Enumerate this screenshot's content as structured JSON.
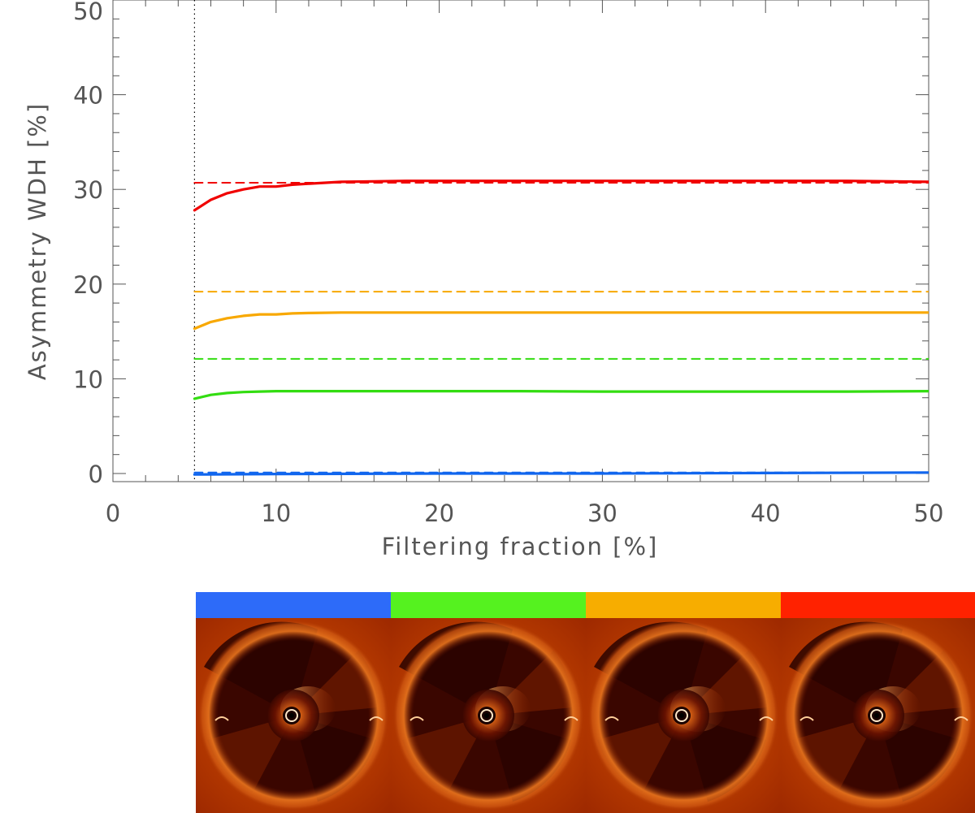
{
  "chart_data": {
    "type": "line",
    "xlabel": "Filtering fraction [%]",
    "ylabel": "Asymmetry WDH [%]",
    "xlim": [
      0,
      50
    ],
    "ylim": [
      0,
      50
    ],
    "xticks": [
      0,
      10,
      20,
      30,
      40,
      50
    ],
    "yticks": [
      0,
      10,
      20,
      30,
      40,
      50
    ],
    "xtick_labels": [
      "0",
      "10",
      "20",
      "30",
      "40",
      "50"
    ],
    "ytick_labels": [
      "0",
      "10",
      "20",
      "30",
      "40",
      "50"
    ],
    "grid": false,
    "vertical_reference_line": {
      "x": 5,
      "style": "dotted",
      "color": "#000000"
    },
    "series": [
      {
        "color": "#f00000",
        "style": "solid",
        "x": [
          5,
          6,
          7,
          8,
          9,
          10,
          11,
          12,
          14,
          16,
          18,
          20,
          25,
          30,
          35,
          40,
          45,
          50
        ],
        "y": [
          27.8,
          28.9,
          29.6,
          30.0,
          30.3,
          30.3,
          30.5,
          30.6,
          30.8,
          30.85,
          30.9,
          30.9,
          30.9,
          30.9,
          30.9,
          30.9,
          30.9,
          30.8
        ]
      },
      {
        "color": "#f00000",
        "style": "dashed",
        "x": [
          5,
          50
        ],
        "y": [
          30.7,
          30.7
        ]
      },
      {
        "color": "#f8a800",
        "style": "solid",
        "x": [
          5,
          6,
          7,
          8,
          9,
          10,
          11,
          12,
          14,
          16,
          18,
          20,
          25,
          30,
          35,
          40,
          45,
          50
        ],
        "y": [
          15.3,
          16.0,
          16.4,
          16.65,
          16.8,
          16.8,
          16.9,
          16.95,
          17.0,
          17.0,
          17.0,
          17.0,
          17.0,
          17.0,
          17.0,
          17.0,
          17.0,
          17.0
        ]
      },
      {
        "color": "#f8a800",
        "style": "dashed",
        "x": [
          5,
          50
        ],
        "y": [
          19.2,
          19.2
        ]
      },
      {
        "color": "#33dd11",
        "style": "solid",
        "x": [
          5,
          6,
          7,
          8,
          9,
          10,
          12,
          15,
          20,
          25,
          30,
          35,
          40,
          45,
          50
        ],
        "y": [
          7.9,
          8.3,
          8.5,
          8.6,
          8.65,
          8.7,
          8.7,
          8.7,
          8.7,
          8.7,
          8.65,
          8.65,
          8.65,
          8.65,
          8.7
        ]
      },
      {
        "color": "#33dd11",
        "style": "dashed",
        "x": [
          5,
          50
        ],
        "y": [
          12.1,
          12.1
        ]
      },
      {
        "color": "#1166ee",
        "style": "solid",
        "x": [
          5,
          10,
          20,
          30,
          40,
          50
        ],
        "y": [
          -0.1,
          -0.05,
          0.0,
          0.0,
          0.05,
          0.1
        ]
      },
      {
        "color": "#1166ee",
        "style": "dashed",
        "x": [
          5,
          50
        ],
        "y": [
          0.1,
          0.1
        ]
      }
    ]
  },
  "image_strip": {
    "swatches": [
      {
        "color": "#2d6bf9",
        "icon": "disk-image-icon"
      },
      {
        "color": "#55f21f",
        "icon": "disk-image-icon"
      },
      {
        "color": "#f7ad00",
        "icon": "disk-image-icon"
      },
      {
        "color": "#ff2200",
        "icon": "disk-image-icon"
      }
    ]
  }
}
